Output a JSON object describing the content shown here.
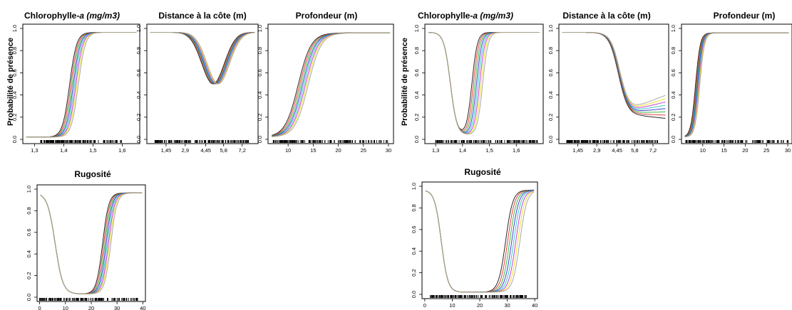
{
  "figure": {
    "ylabel": "Probabilité de présence",
    "colors": [
      "#000000",
      "#e11d1d",
      "#22aa22",
      "#2020cc",
      "#19c0c0",
      "#c020c0",
      "#e8d800",
      "#9a9a9a"
    ]
  },
  "chart_data": [
    {
      "type": "line",
      "group": "left",
      "title_main": "Chlorophylle-",
      "title_ital": "a (mg/m3)",
      "xlim": [
        1.26,
        1.66
      ],
      "ylim": [
        0,
        1
      ],
      "xticks": [
        1.3,
        1.4,
        1.5,
        1.6
      ],
      "xtick_labels": [
        "1,3",
        "1,4",
        "1,5",
        "1,6"
      ],
      "yticks": [
        0,
        0.2,
        0.4,
        0.6,
        0.8,
        1
      ],
      "ytick_labels": [
        "0.0",
        "0.2",
        "0.4",
        "0.6",
        "0.8",
        "1.0"
      ],
      "curve": {
        "kind": "sig",
        "lo": 0.02,
        "hi": 0.965,
        "c": 1.435,
        "w": 0.012
      },
      "spread": 0.015,
      "rug": [
        1.32,
        1.6
      ]
    },
    {
      "type": "line",
      "group": "left",
      "title_main": "Distance à la côte (m)",
      "title_ital": "",
      "xlim": [
        0,
        8.4
      ],
      "ylim": [
        0,
        1
      ],
      "xticks": [
        1.45,
        2.9,
        4.45,
        5.8,
        7.2
      ],
      "xtick_labels": [
        "1,45",
        "2,9",
        "4,45",
        "5,8",
        "7,2"
      ],
      "yticks": [
        0,
        0.2,
        0.4,
        0.6,
        0.8,
        1
      ],
      "ytick_labels": [
        "0.0",
        "0.2",
        "0.4",
        "0.6",
        "0.8",
        "1.0"
      ],
      "curve": {
        "kind": "dip",
        "base": 0.965,
        "low": 0.5,
        "c": 5.2,
        "w": 1.2
      },
      "spread": 0.2,
      "rug": [
        0.6,
        7.8
      ]
    },
    {
      "type": "line",
      "group": "left",
      "title_main": "Profondeur (m)",
      "title_ital": "",
      "xlim": [
        6,
        31
      ],
      "ylim": [
        0,
        1
      ],
      "xticks": [
        10,
        15,
        20,
        25,
        30
      ],
      "xtick_labels": [
        "10",
        "15",
        "20",
        "25",
        "30"
      ],
      "yticks": [
        0,
        0.2,
        0.4,
        0.6,
        0.8,
        1
      ],
      "ytick_labels": [
        "0.0",
        "0.2",
        "0.4",
        "0.6",
        "0.8",
        "1.0"
      ],
      "curve": {
        "kind": "sig",
        "lo": 0.02,
        "hi": 0.96,
        "c": 13,
        "w": 1.3
      },
      "spread": 1.0,
      "rug": [
        7,
        30
      ]
    },
    {
      "type": "line",
      "group": "left",
      "title_main": "Rugosité",
      "title_ital": "",
      "xlim": [
        -1,
        41
      ],
      "ylim": [
        0,
        1
      ],
      "xticks": [
        0,
        10,
        20,
        30,
        40
      ],
      "xtick_labels": [
        "0",
        "10",
        "20",
        "30",
        "40"
      ],
      "yticks": [
        0,
        0.2,
        0.4,
        0.6,
        0.8,
        1
      ],
      "ytick_labels": [
        "0.0",
        "0.2",
        "0.4",
        "0.6",
        "0.8",
        "1.0"
      ],
      "curve": {
        "kind": "bowl",
        "hi": 0.965,
        "lo": 0.03,
        "c1": 6,
        "w1": 1.5,
        "c2": 26,
        "w2": 1.2
      },
      "spread": 1.6,
      "rug": [
        0,
        38
      ]
    },
    {
      "type": "line",
      "group": "right",
      "title_main": "Chlorophylle-",
      "title_ital": "a (mg/m3)",
      "xlim": [
        1.26,
        1.7
      ],
      "ylim": [
        0,
        1
      ],
      "xticks": [
        1.3,
        1.4,
        1.5,
        1.6
      ],
      "xtick_labels": [
        "1,3",
        "1,4",
        "1,5",
        "1,6"
      ],
      "yticks": [
        0,
        0.2,
        0.4,
        0.6,
        0.8,
        1
      ],
      "ytick_labels": [
        "0.0",
        "0.2",
        "0.4",
        "0.6",
        "0.8",
        "1.0"
      ],
      "curve": {
        "kind": "bowl",
        "hi": 0.965,
        "lo": 0.04,
        "c1": 1.355,
        "w1": 0.012,
        "c2": 1.455,
        "w2": 0.01
      },
      "spread": 0.02,
      "rug": [
        1.3,
        1.68
      ]
    },
    {
      "type": "line",
      "group": "right",
      "title_main": "Distance à la côte (m)",
      "title_ital": "",
      "xlim": [
        0,
        8.4
      ],
      "ylim": [
        0,
        1
      ],
      "xticks": [
        1.45,
        2.9,
        4.45,
        5.8,
        7.2
      ],
      "xtick_labels": [
        "1,45",
        "2,9",
        "4,45",
        "5,8",
        "7,2"
      ],
      "yticks": [
        0,
        0.2,
        0.4,
        0.6,
        0.8,
        1
      ],
      "ytick_labels": [
        "0.0",
        "0.2",
        "0.4",
        "0.6",
        "0.8",
        "1.0"
      ],
      "curve": {
        "kind": "dipTail",
        "base": 0.965,
        "low": 0.25,
        "c": 4.6,
        "w": 0.35,
        "end": 0.3
      },
      "spread": 0.25,
      "rug": [
        0.6,
        7.8
      ]
    },
    {
      "type": "line",
      "group": "right",
      "title_main": "Profondeur (m)",
      "title_ital": "",
      "xlim": [
        5,
        31
      ],
      "ylim": [
        0,
        1
      ],
      "xticks": [
        10,
        15,
        20,
        25,
        30
      ],
      "xtick_labels": [
        "10",
        "15",
        "20",
        "25",
        "30"
      ],
      "yticks": [
        0,
        0.2,
        0.4,
        0.6,
        0.8,
        1
      ],
      "ytick_labels": [
        "0.0",
        "0.2",
        "0.4",
        "0.6",
        "0.8",
        "1.0"
      ],
      "curve": {
        "kind": "sig",
        "lo": 0.02,
        "hi": 0.96,
        "c": 8.8,
        "w": 0.55
      },
      "spread": 0.5,
      "rug": [
        6,
        31
      ]
    },
    {
      "type": "line",
      "group": "right",
      "title_main": "Rugosité",
      "title_ital": "",
      "xlim": [
        -1,
        41
      ],
      "ylim": [
        0,
        1
      ],
      "xticks": [
        0,
        10,
        20,
        30,
        40
      ],
      "xtick_labels": [
        "0",
        "10",
        "20",
        "30",
        "40"
      ],
      "yticks": [
        0,
        0.2,
        0.4,
        0.6,
        0.8,
        1
      ],
      "ytick_labels": [
        "0.0",
        "0.2",
        "0.4",
        "0.6",
        "0.8",
        "1.0"
      ],
      "curve": {
        "kind": "bowl",
        "hi": 0.965,
        "lo": 0.02,
        "c1": 6,
        "w1": 1.2,
        "c2": 32,
        "w2": 1.3
      },
      "spread": 2.6,
      "rug": [
        2,
        38
      ]
    }
  ]
}
